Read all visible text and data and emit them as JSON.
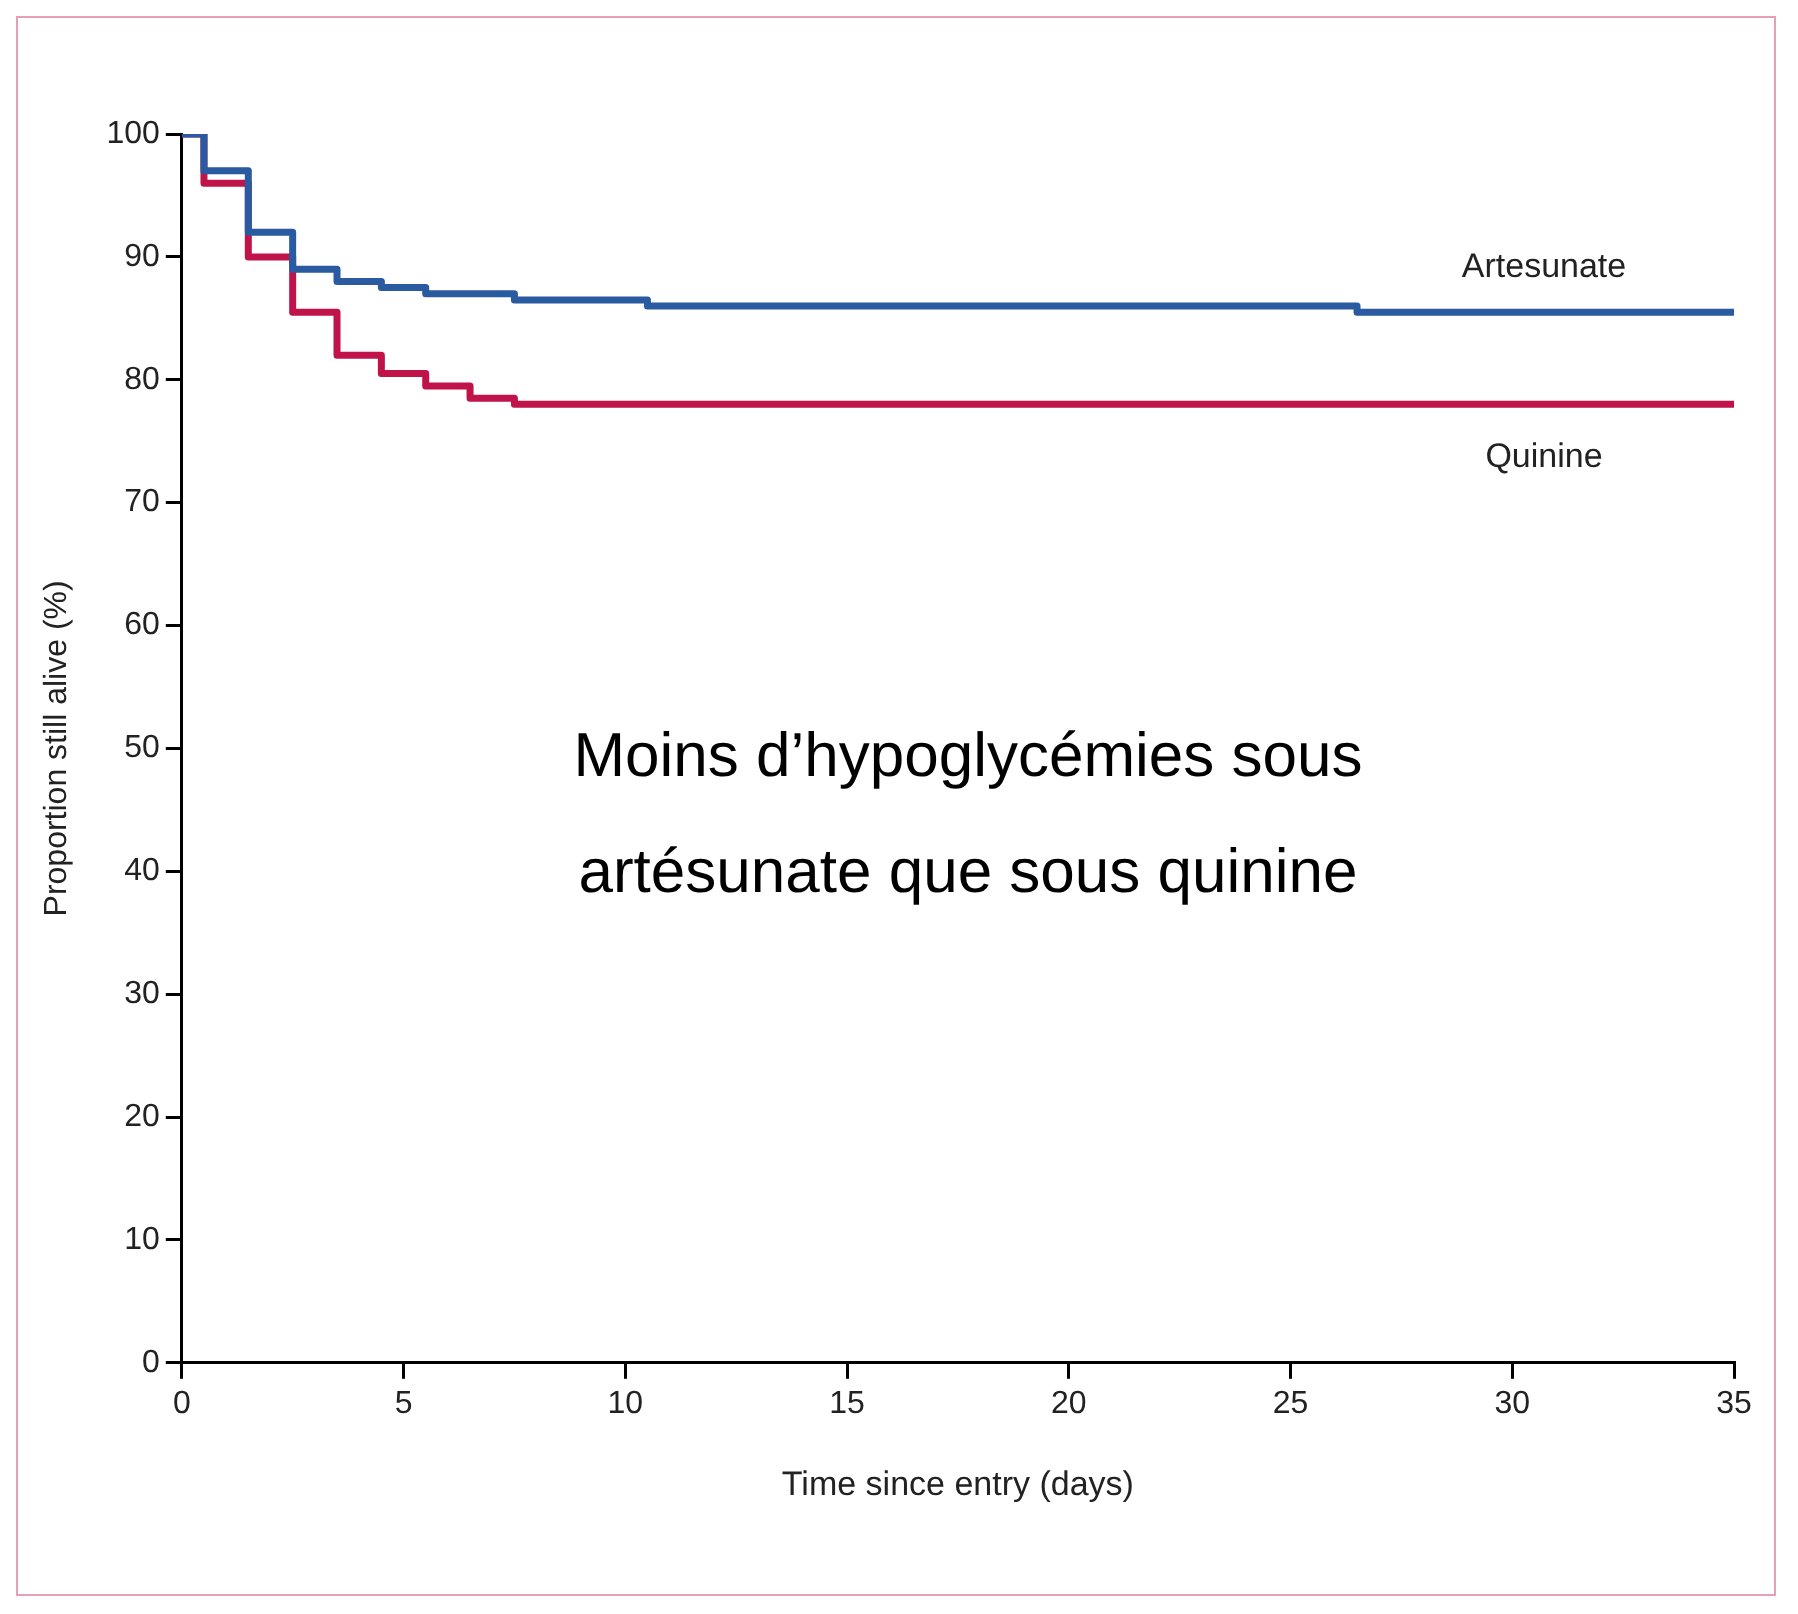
{
  "chart_data": {
    "type": "step",
    "xlabel": "Time since entry (days)",
    "ylabel": "Proportion still alive (%)",
    "xlim": [
      0,
      35
    ],
    "xticks": [
      0,
      5,
      10,
      15,
      20,
      25,
      30,
      35
    ],
    "ylim": [
      0,
      100
    ],
    "yticks": [
      0,
      10,
      20,
      30,
      40,
      50,
      60,
      70,
      80,
      90,
      100
    ],
    "grid": false,
    "legend": false,
    "series": [
      {
        "name": "Artesunate",
        "color": "#2a5aa0",
        "x": [
          0,
          0.5,
          1.5,
          2.5,
          3.5,
          4.5,
          5.5,
          7.5,
          10.5,
          26.5,
          35
        ],
        "values": [
          100,
          97,
          92,
          89,
          88,
          87.5,
          87,
          86.5,
          86,
          85.5,
          85.5
        ]
      },
      {
        "name": "Quinine",
        "color": "#c0134a",
        "x": [
          0,
          0.5,
          1.5,
          2.5,
          3.5,
          4.5,
          5.5,
          6.5,
          7.5,
          35
        ],
        "values": [
          100,
          96,
          90,
          85.5,
          82,
          80.5,
          79.5,
          78.5,
          78,
          78
        ]
      }
    ],
    "annotations": [
      "Moins d’hypoglycémies sous artésunate que sous quinine"
    ]
  }
}
